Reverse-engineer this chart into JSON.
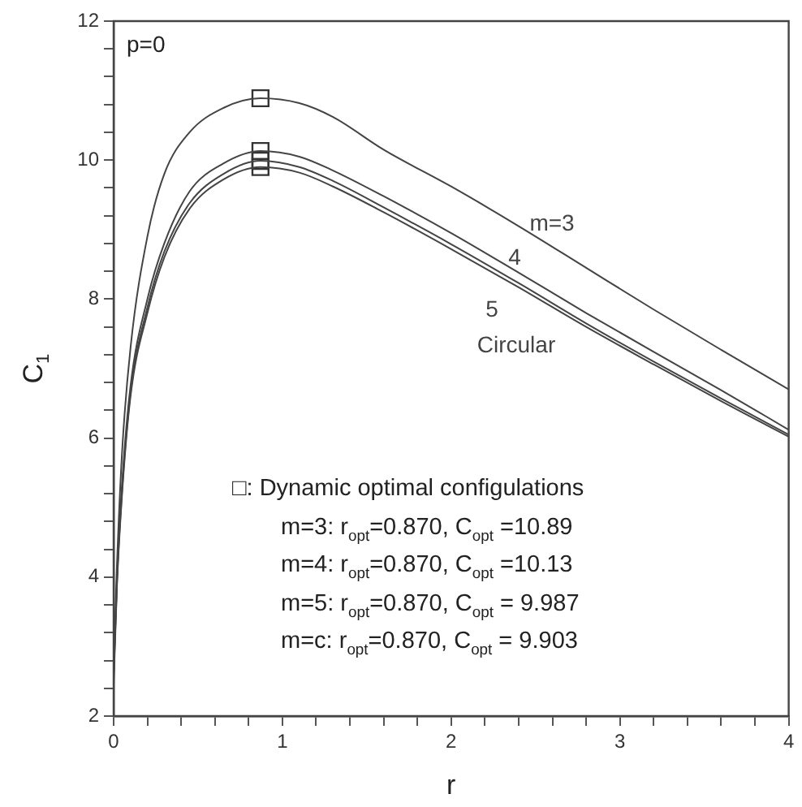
{
  "chart_data": {
    "type": "line",
    "xlabel": "r",
    "ylabel": "C$_{1}$",
    "xlim": [
      0,
      4
    ],
    "ylim": [
      2,
      12
    ],
    "xticks": [
      0,
      {
        "value": 0.2,
        "label": null
      },
      {
        "value": 0.4,
        "label": null
      },
      {
        "value": 0.6,
        "label": null
      },
      {
        "value": 0.8,
        "label": null
      },
      1,
      {
        "value": 1.2,
        "label": null
      },
      {
        "value": 1.4,
        "label": null
      },
      {
        "value": 1.6,
        "label": null
      },
      {
        "value": 1.8,
        "label": null
      },
      2,
      {
        "value": 2.2,
        "label": null
      },
      {
        "value": 2.4,
        "label": null
      },
      {
        "value": 2.6,
        "label": null
      },
      {
        "value": 2.8,
        "label": null
      },
      3,
      {
        "value": 3.2,
        "label": null
      },
      {
        "value": 3.4,
        "label": null
      },
      {
        "value": 3.6,
        "label": null
      },
      {
        "value": 3.8,
        "label": null
      },
      4
    ],
    "yticks": [
      2,
      {
        "value": 2.4,
        "label": null
      },
      {
        "value": 2.8,
        "label": null
      },
      {
        "value": 3.2,
        "label": null
      },
      {
        "value": 3.6,
        "label": null
      },
      4,
      {
        "value": 4.4,
        "label": null
      },
      {
        "value": 4.8,
        "label": null
      },
      {
        "value": 5.2,
        "label": null
      },
      {
        "value": 5.6,
        "label": null
      },
      6,
      {
        "value": 6.4,
        "label": null
      },
      {
        "value": 6.8,
        "label": null
      },
      {
        "value": 7.2,
        "label": null
      },
      {
        "value": 7.6,
        "label": null
      },
      8,
      {
        "value": 8.4,
        "label": null
      },
      {
        "value": 8.8,
        "label": null
      },
      {
        "value": 9.2,
        "label": null
      },
      {
        "value": 9.6,
        "label": null
      },
      10,
      {
        "value": 10.4,
        "label": null
      },
      {
        "value": 10.8,
        "label": null
      },
      {
        "value": 11.2,
        "label": null
      },
      {
        "value": 11.6,
        "label": null
      },
      12
    ],
    "grid": false,
    "legend": false,
    "marker": "none",
    "line_style": "solid",
    "x": [
      0,
      0.02,
      0.05,
      0.1,
      0.2,
      0.3,
      0.45,
      0.65,
      0.87,
      1.1,
      1.3,
      1.6,
      2.0,
      2.4,
      2.8,
      3.2,
      3.6,
      4.0
    ],
    "series": [
      {
        "name": "m=3",
        "color": "#444444",
        "values": [
          2.7,
          4.2,
          5.8,
          7.3,
          8.9,
          9.8,
          10.4,
          10.75,
          10.89,
          10.82,
          10.62,
          10.15,
          9.62,
          9.05,
          8.45,
          7.85,
          7.27,
          6.7
        ]
      },
      {
        "name": "4",
        "color": "#444444",
        "values": [
          2.6,
          4.0,
          5.35,
          6.75,
          8.0,
          8.8,
          9.55,
          9.95,
          10.13,
          10.05,
          9.85,
          9.48,
          8.95,
          8.38,
          7.8,
          7.24,
          6.69,
          6.12
        ]
      },
      {
        "name": "5",
        "color": "#444444",
        "values": [
          2.55,
          3.95,
          5.25,
          6.65,
          7.88,
          8.68,
          9.38,
          9.8,
          9.99,
          9.9,
          9.7,
          9.32,
          8.79,
          8.23,
          7.65,
          7.1,
          6.57,
          6.05
        ]
      },
      {
        "name": "Circular",
        "color": "#444444",
        "values": [
          2.45,
          3.9,
          5.2,
          6.6,
          7.8,
          8.6,
          9.3,
          9.72,
          9.9,
          9.82,
          9.62,
          9.25,
          8.72,
          8.17,
          7.6,
          7.06,
          6.53,
          6.02
        ]
      },
      {
        "type": "scatter",
        "marker": "square",
        "color": "#333333",
        "values": [
          null,
          null,
          null,
          null,
          null,
          null,
          null,
          null,
          10.89,
          null,
          null,
          null,
          null,
          null,
          null,
          null,
          null,
          null
        ]
      },
      {
        "type": "scatter",
        "marker": "square",
        "color": "#333333",
        "values": [
          null,
          null,
          null,
          null,
          null,
          null,
          null,
          null,
          10.13,
          null,
          null,
          null,
          null,
          null,
          null,
          null,
          null,
          null
        ]
      },
      {
        "type": "scatter",
        "marker": "square",
        "color": "#333333",
        "values": [
          null,
          null,
          null,
          null,
          null,
          null,
          null,
          null,
          9.99,
          null,
          null,
          null,
          null,
          null,
          null,
          null,
          null,
          null
        ]
      },
      {
        "type": "scatter",
        "marker": "square",
        "color": "#333333",
        "values": [
          null,
          null,
          null,
          null,
          null,
          null,
          null,
          null,
          9.9,
          null,
          null,
          null,
          null,
          null,
          null,
          null,
          null,
          null
        ]
      }
    ],
    "annotations": [
      "p=0",
      "□: Dynamic optimal configulations",
      "m=3:  r$_{opt}$=0.870, C$_{opt}$ =10.89",
      "m=4:  r$_{opt}$=0.870, C$_{opt}$ =10.13",
      "m=5:  r$_{opt}$=0.870, C$_{opt}$ = 9.987",
      "m=c:  r$_{opt}$=0.870, C$_{opt}$ = 9.903"
    ]
  }
}
